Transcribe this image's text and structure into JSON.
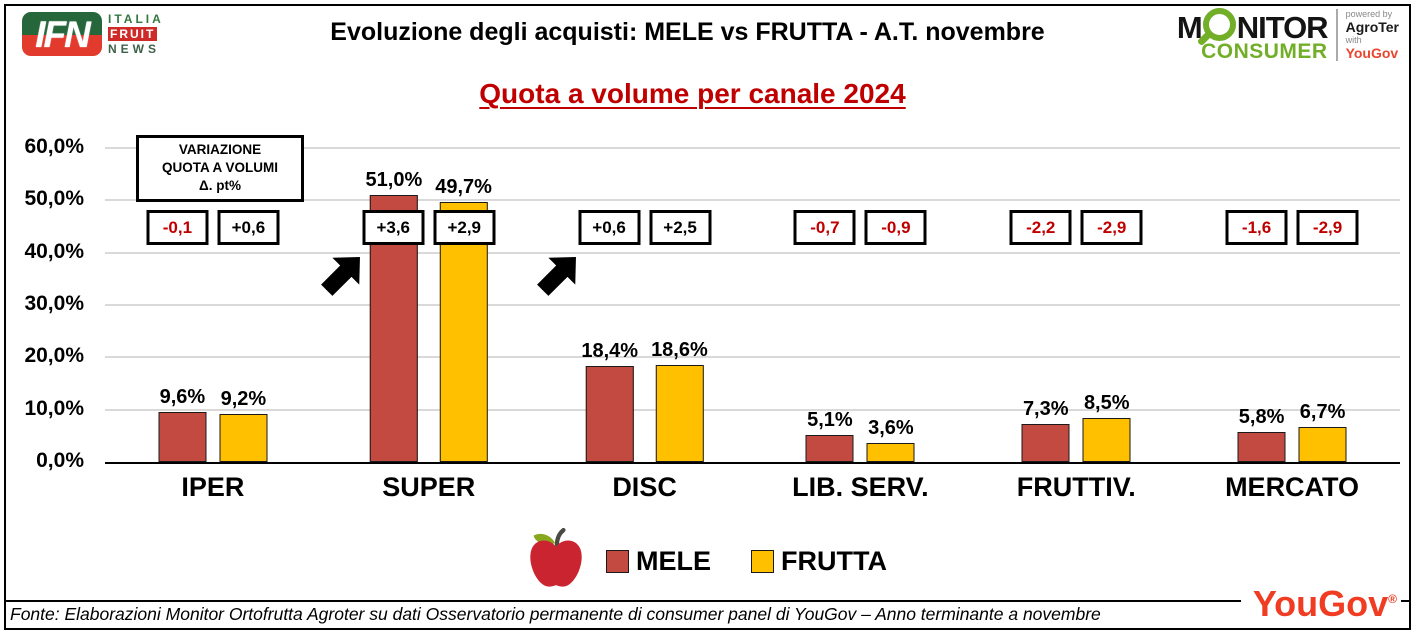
{
  "header": {
    "ifn_logo": {
      "abbr": "IFN",
      "line1": "ITALIA",
      "line2": "FRUIT",
      "line3": "NEWS"
    },
    "title": "Evoluzione degli acquisti: MELE vs FRUTTA  - A.T. novembre",
    "monitor_logo": {
      "word_start": "M",
      "word_end": "NITOR",
      "consumer": "CONSUMER",
      "powered_by": "powered by",
      "agroter": "AgroTer",
      "with_label": "with",
      "yougov": "YouGov"
    }
  },
  "subtitle": "Quota a volume per canale 2024",
  "variation_header": {
    "line1": "VARIAZIONE",
    "line2": "QUOTA A VOLUMI",
    "line3": "Δ. pt%"
  },
  "chart_data": {
    "type": "bar",
    "title": "Quota a volume per canale 2024",
    "categories": [
      "IPER",
      "SUPER",
      "DISC",
      "LIB. SERV.",
      "FRUTTIV.",
      "MERCATO"
    ],
    "series": [
      {
        "name": "MELE",
        "color": "#C24A41",
        "values": [
          9.6,
          51.0,
          18.4,
          5.1,
          7.3,
          5.8
        ],
        "labels": [
          "9,6%",
          "51,0%",
          "18,4%",
          "5,1%",
          "7,3%",
          "5,8%"
        ],
        "variations": [
          "-0,1",
          "+3,6",
          "+0,6",
          "-0,7",
          "-2,2",
          "-1,6"
        ]
      },
      {
        "name": "FRUTTA",
        "color": "#FFC000",
        "values": [
          9.2,
          49.7,
          18.6,
          3.6,
          8.5,
          6.7
        ],
        "labels": [
          "9,2%",
          "49,7%",
          "18,6%",
          "3,6%",
          "8,5%",
          "6,7%"
        ],
        "variations": [
          "+0,6",
          "+2,9",
          "+2,5",
          "-0,9",
          "-2,9",
          "-2,9"
        ]
      }
    ],
    "ylabel_ticks": [
      "60,0%",
      "50,0%",
      "40,0%",
      "30,0%",
      "20,0%",
      "10,0%",
      "0,0%"
    ],
    "ylim": [
      0,
      60
    ],
    "grid": true,
    "legend_position": "bottom",
    "annotations": [
      "black up-right arrow at SUPER",
      "black up-right arrow at DISC"
    ],
    "arrow_groups": [
      1,
      2
    ]
  },
  "legend": {
    "items": [
      {
        "label": "MELE",
        "color": "#C24A41"
      },
      {
        "label": "FRUTTA",
        "color": "#FFC000"
      }
    ]
  },
  "footer": {
    "source": "Fonte: Elaborazioni Monitor Ortofrutta Agroter su dati Osservatorio permanente di consumer panel di YouGov  – Anno terminante a novembre",
    "yougov_logo": "YouGov",
    "registered": "®"
  },
  "colors": {
    "mele": "#C24A41",
    "frutta": "#FFC000",
    "negative_text": "#C00000",
    "title_red": "#C00000",
    "gridline": "#D9D9D9",
    "yougov_red": "#F03C22",
    "monitor_green": "#72AE28"
  }
}
